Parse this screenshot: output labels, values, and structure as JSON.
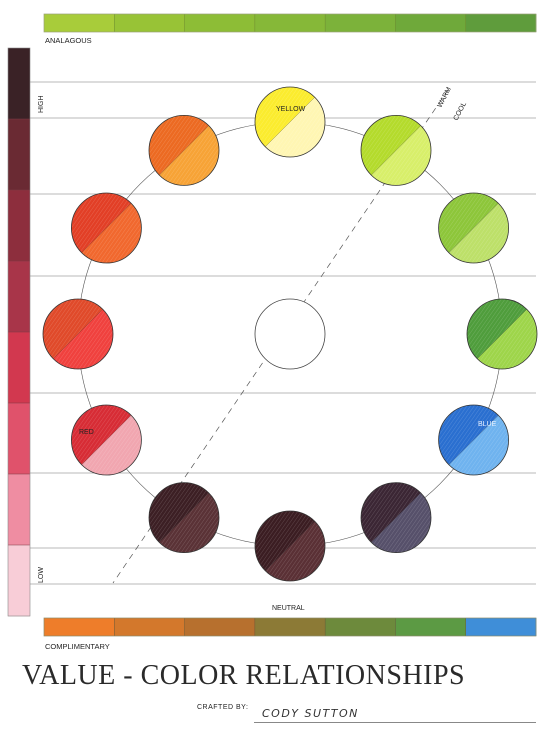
{
  "labels": {
    "analogous": "ANALAGOUS",
    "high": "HIGH",
    "low": "LOW",
    "warm": "WARM",
    "cool": "COOL",
    "yellow": "YELLOW",
    "red": "RED",
    "blue": "BLUE",
    "neutral": "NEUTRAL",
    "complimentary": "COMPLIMENTARY"
  },
  "title": "VALUE - COLOR RELATIONSHIPS",
  "crafted_by_label": "CRAFTED BY:",
  "crafted_by_name": "CODY  SUTTON",
  "palette": {
    "analogous_bar": [
      "#a8cc3a",
      "#98c336",
      "#8dbd36",
      "#86b838",
      "#7cb23a",
      "#6fa93a",
      "#5f9c3c"
    ],
    "value_scale": [
      "#3a2226",
      "#6a2a33",
      "#8d2e3d",
      "#a83549",
      "#d2384f",
      "#e0526b",
      "#ef8da2",
      "#f8cdd7"
    ],
    "complementary_bar": [
      "#ee7d2a",
      "#d3782c",
      "#b7702e",
      "#8c7a36",
      "#6d8a3c",
      "#5c9a44",
      "#3f8ed8"
    ],
    "wheel": [
      {
        "name": "yellow",
        "light": "#fff6b3",
        "dark": "#fbec2e"
      },
      {
        "name": "yellow-green",
        "light": "#d8ef6a",
        "dark": "#b4db2c"
      },
      {
        "name": "green-light",
        "light": "#bde069",
        "dark": "#8dc63a"
      },
      {
        "name": "green",
        "light": "#9ed54a",
        "dark": "#4f9d3c"
      },
      {
        "name": "blue",
        "light": "#6fb3ef",
        "dark": "#2a6fd0"
      },
      {
        "name": "blue-violet",
        "light": "#56506a",
        "dark": "#3b2634"
      },
      {
        "name": "violet",
        "light": "#5a3035",
        "dark": "#3b1d22"
      },
      {
        "name": "red-violet",
        "light": "#5a3236",
        "dark": "#3c1f24"
      },
      {
        "name": "red",
        "light": "#f1a6b0",
        "dark": "#d72c35"
      },
      {
        "name": "red-orange",
        "light": "#f0413e",
        "dark": "#e04a2a"
      },
      {
        "name": "orange-red",
        "light": "#f1682e",
        "dark": "#e23f26"
      },
      {
        "name": "orange",
        "light": "#f7a336",
        "dark": "#ec6a22"
      }
    ]
  }
}
